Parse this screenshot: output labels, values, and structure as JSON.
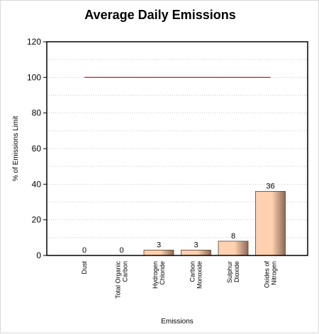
{
  "chart_data": {
    "type": "bar",
    "title": "Average Daily Emissions",
    "xlabel": "Emissions",
    "ylabel": "% of Emissions Limit",
    "ylim": [
      0,
      120
    ],
    "yticks": [
      0,
      20,
      40,
      60,
      80,
      100,
      120
    ],
    "categories": [
      [
        "Dust"
      ],
      [
        "Total Organic",
        "Carbon"
      ],
      [
        "Hydrogen",
        "Chloride"
      ],
      [
        "Carbon",
        "Monoxide"
      ],
      [
        "Sulphur",
        "Dioxide"
      ],
      [
        "Oxides of",
        "Nitrogen"
      ]
    ],
    "values": [
      0,
      0,
      3,
      3,
      8,
      36
    ],
    "data_labels": [
      "0",
      "0",
      "3",
      "3",
      "8",
      "36"
    ],
    "limit_line": {
      "value": 100,
      "color": "#cc0000"
    },
    "grid": "horizontal dotted",
    "colors": {
      "bar_light": "#ffd1b0",
      "bar_dark": "#8a6a58",
      "frame": "#000000",
      "grid": "#c8c8c8"
    }
  }
}
